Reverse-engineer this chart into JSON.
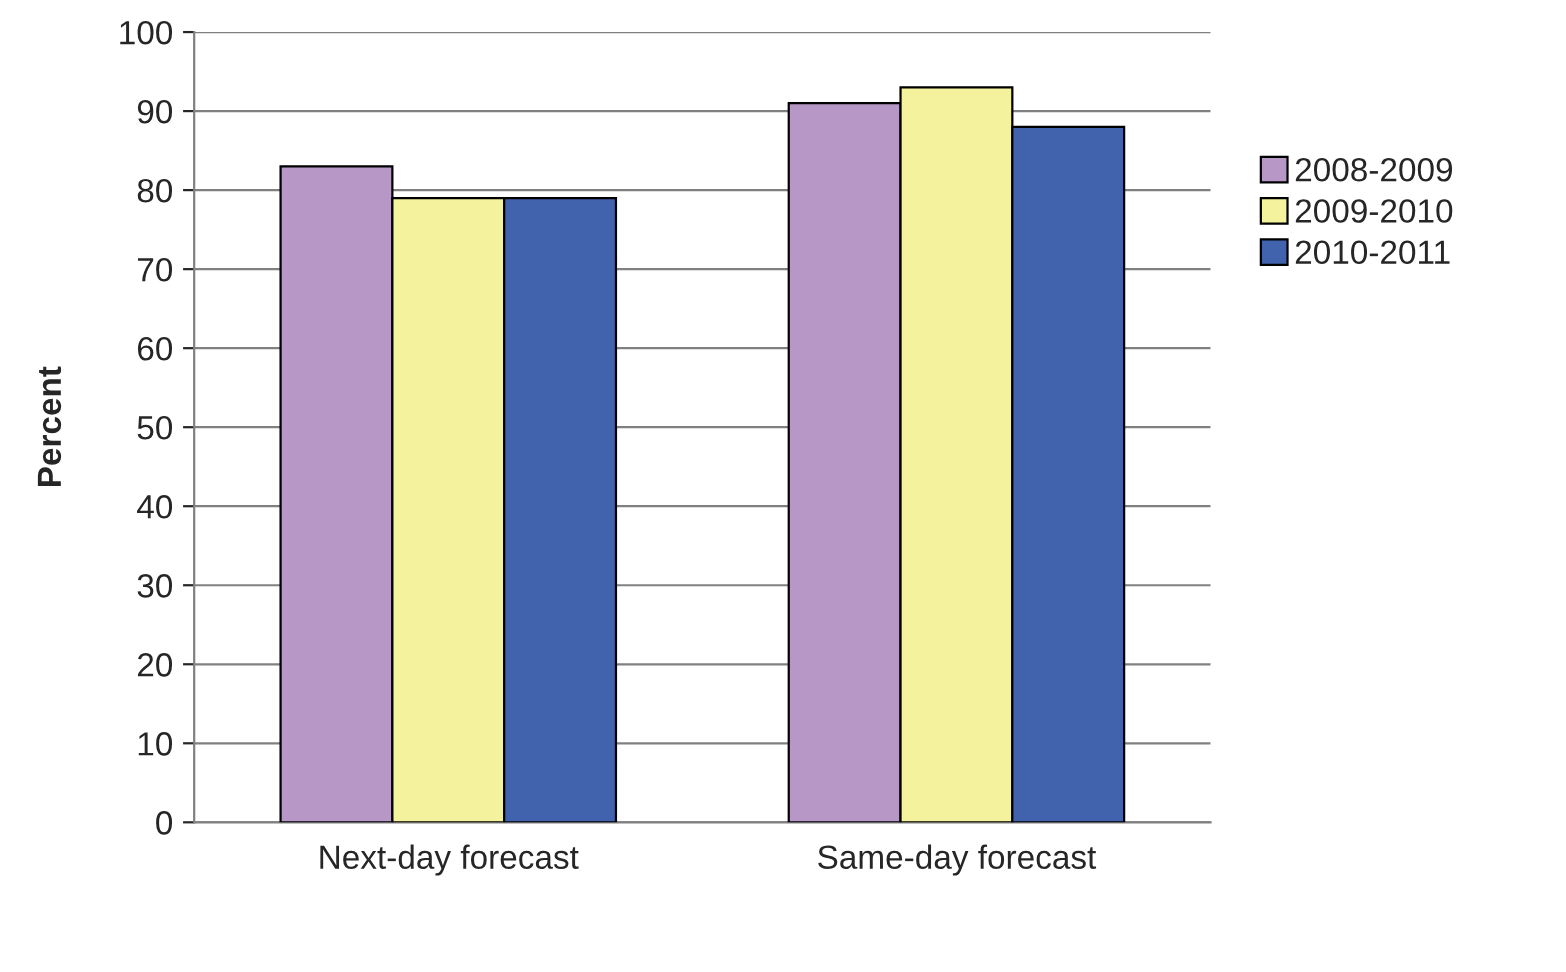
{
  "chart_data": {
    "type": "bar",
    "ylabel": "Percent",
    "categories": [
      "Next-day forecast",
      "Same-day forecast"
    ],
    "series": [
      {
        "name": "2008-2009",
        "color": "#b797c6",
        "values": [
          83,
          91
        ]
      },
      {
        "name": "2009-2010",
        "color": "#f5f29e",
        "values": [
          79,
          93
        ]
      },
      {
        "name": "2010-2011",
        "color": "#4163ad",
        "values": [
          79,
          88
        ]
      }
    ],
    "ylim": [
      0,
      100
    ],
    "yticks": [
      0,
      10,
      20,
      30,
      40,
      50,
      60,
      70,
      80,
      90,
      100
    ],
    "grid": "y",
    "legend": "right"
  }
}
